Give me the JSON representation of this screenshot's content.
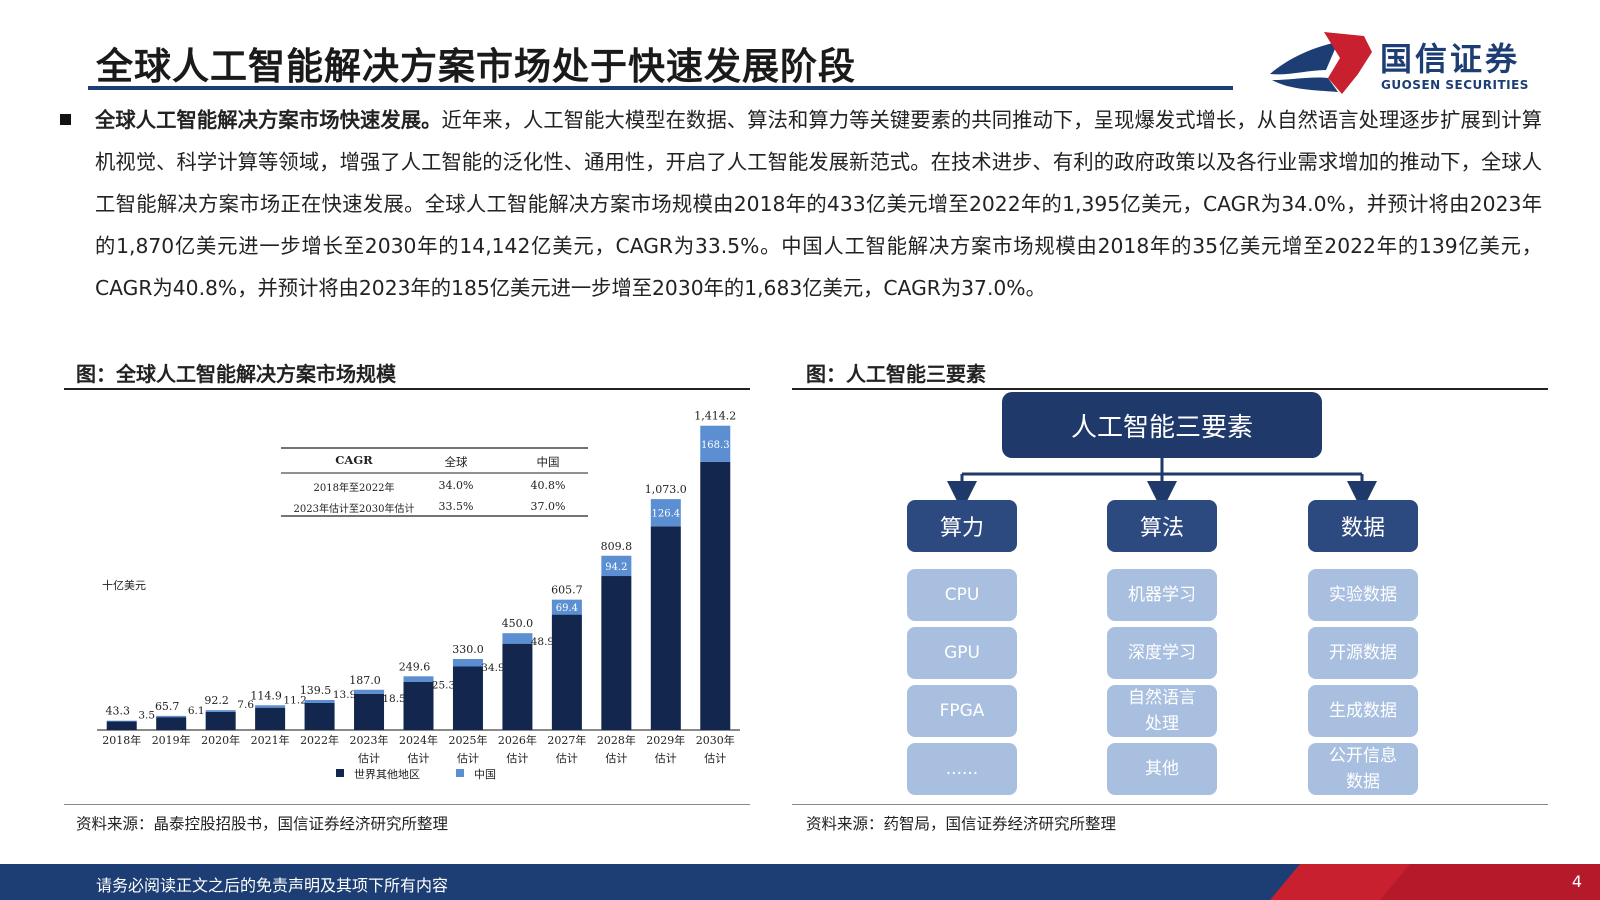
{
  "header": {
    "title": "全球人工智能解决方案市场处于快速发展阶段",
    "logo_cn": "国信证券",
    "logo_en": "GUOSEN SECURITIES"
  },
  "body": {
    "lead": "全球人工智能解决方案市场快速发展。",
    "text": "近年来，人工智能大模型在数据、算法和算力等关键要素的共同推动下，呈现爆发式增长，从自然语言处理逐步扩展到计算机视觉、科学计算等领域，增强了人工智能的泛化性、通用性，开启了人工智能发展新范式。在技术进步、有利的政府政策以及各行业需求增加的推动下，全球人工智能解决方案市场正在快速发展。全球人工智能解决方案市场规模由2018年的433亿美元增至2022年的1,395亿美元，CAGR为34.0%，并预计将由2023年的1,870亿美元进一步增长至2030年的14,142亿美元，CAGR为33.5%。中国人工智能解决方案市场规模由2018年的35亿美元增至2022年的139亿美元，CAGR为40.8%，并预计将由2023年的185亿美元进一步增至2030年的1,683亿美元，CAGR为37.0%。"
  },
  "figure_left": {
    "title": "图：全球人工智能解决方案市场规模",
    "source": "资料来源：晶泰控股招股书，国信证券经济研究所整理"
  },
  "figure_right": {
    "title": "图：人工智能三要素",
    "source": "资料来源：药智局，国信证券经济研究所整理",
    "root": "人工智能三要素",
    "columns": [
      {
        "name": "算力",
        "items": [
          "CPU",
          "GPU",
          "FPGA",
          "......"
        ]
      },
      {
        "name": "算法",
        "items": [
          "机器学习",
          "深度学习",
          "自然语言处理",
          "其他"
        ]
      },
      {
        "name": "数据",
        "items": [
          "实验数据",
          "开源数据",
          "生成数据",
          "公开信息数据"
        ]
      }
    ]
  },
  "footer": {
    "disclaimer": "请务必阅读正文之后的免责声明及其项下所有内容",
    "page": "4"
  },
  "colors": {
    "brand_navy": "#1d3e74",
    "brand_red": "#c8202f",
    "bar_world": "#13264d",
    "bar_china": "#5b8fd2"
  },
  "chart_data": {
    "type": "bar",
    "stacked": true,
    "unit_label": "十亿美元",
    "categories": [
      "2018年",
      "2019年",
      "2020年",
      "2021年",
      "2022年",
      "2023年估计",
      "2024年估计",
      "2025年估计",
      "2026年估计",
      "2027年估计",
      "2028年估计",
      "2029年估计",
      "2030年估计"
    ],
    "tick_lines": [
      [
        "2018年"
      ],
      [
        "2019年"
      ],
      [
        "2020年"
      ],
      [
        "2021年"
      ],
      [
        "2022年"
      ],
      [
        "2023年",
        "估计"
      ],
      [
        "2024年",
        "估计"
      ],
      [
        "2025年",
        "估计"
      ],
      [
        "2026年",
        "估计"
      ],
      [
        "2027年",
        "估计"
      ],
      [
        "2028年",
        "估计"
      ],
      [
        "2029年",
        "估计"
      ],
      [
        "2030年",
        "估计"
      ]
    ],
    "series": [
      {
        "name": "世界其他地区",
        "values": [
          39.8,
          59.6,
          84.6,
          103.7,
          125.6,
          168.5,
          224.3,
          295.1,
          401.1,
          536.3,
          715.6,
          946.6,
          1245.9
        ]
      },
      {
        "name": "中国",
        "values": [
          3.5,
          6.1,
          7.6,
          11.2,
          13.9,
          18.5,
          25.3,
          34.9,
          48.9,
          69.4,
          94.2,
          126.4,
          168.3
        ]
      }
    ],
    "totals": [
      43.3,
      65.7,
      92.2,
      114.9,
      139.5,
      187.0,
      249.6,
      330.0,
      450.0,
      605.7,
      809.8,
      1073.0,
      1414.2
    ],
    "total_labels": [
      "43.3",
      "65.7",
      "92.2",
      "114.9",
      "139.5",
      "187.0",
      "249.6",
      "330.0",
      "450.0",
      "605.7",
      "809.8",
      "1,073.0",
      "1,414.2"
    ],
    "china_labels": [
      "3.5",
      "6.1",
      "7.6",
      "11.2",
      "13.9",
      "18.5",
      "25.3",
      "34.9",
      "48.9",
      "69.4",
      "94.2",
      "126.4",
      "168.3"
    ],
    "ylim": [
      0,
      1450
    ],
    "cagr_table": {
      "headers": [
        "CAGR",
        "全球",
        "中国"
      ],
      "rows": [
        [
          "2018年至2022年",
          "34.0%",
          "40.8%"
        ],
        [
          "2023年估计至2030年估计",
          "33.5%",
          "37.0%"
        ]
      ]
    }
  }
}
